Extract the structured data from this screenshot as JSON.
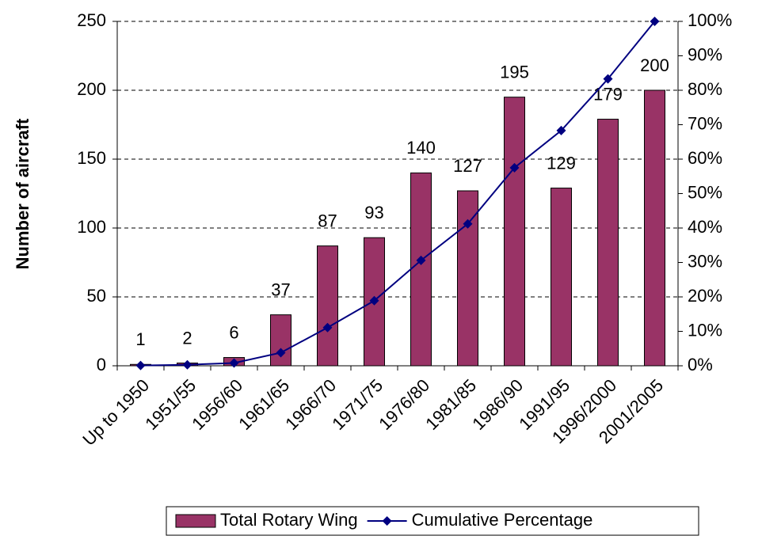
{
  "chart_data": {
    "type": "bar",
    "y_label": "Number of aircraft",
    "categories": [
      "Up to 1950",
      "1951/55",
      "1956/60",
      "1961/65",
      "1966/70",
      "1971/75",
      "1976/80",
      "1981/85",
      "1986/90",
      "1991/95",
      "1996/2000",
      "2001/2005"
    ],
    "series": [
      {
        "name": "Total Rotary Wing",
        "type": "bar",
        "color": "#993366",
        "values": [
          1,
          2,
          6,
          37,
          87,
          93,
          140,
          127,
          195,
          129,
          179,
          200
        ]
      },
      {
        "name": "Cumulative Percentage",
        "type": "line",
        "axis": "y2",
        "color": "#000080",
        "values": [
          0.1,
          0.3,
          0.8,
          3.8,
          11.1,
          18.9,
          30.6,
          41.2,
          57.5,
          68.3,
          83.3,
          100
        ]
      }
    ],
    "ylim": [
      0,
      250
    ],
    "yticks": [
      0,
      50,
      100,
      150,
      200,
      250
    ],
    "y2lim": [
      0,
      100
    ],
    "y2ticks": [
      {
        "value": 0,
        "label": "0%"
      },
      {
        "value": 10,
        "label": "10%"
      },
      {
        "value": 20,
        "label": "20%"
      },
      {
        "value": 30,
        "label": "30%"
      },
      {
        "value": 40,
        "label": "40%"
      },
      {
        "value": 50,
        "label": "50%"
      },
      {
        "value": 60,
        "label": "60%"
      },
      {
        "value": 70,
        "label": "70%"
      },
      {
        "value": 80,
        "label": "80%"
      },
      {
        "value": 90,
        "label": "90%"
      },
      {
        "value": 100,
        "label": "100%"
      }
    ],
    "grid": true,
    "legend": "bottom"
  }
}
